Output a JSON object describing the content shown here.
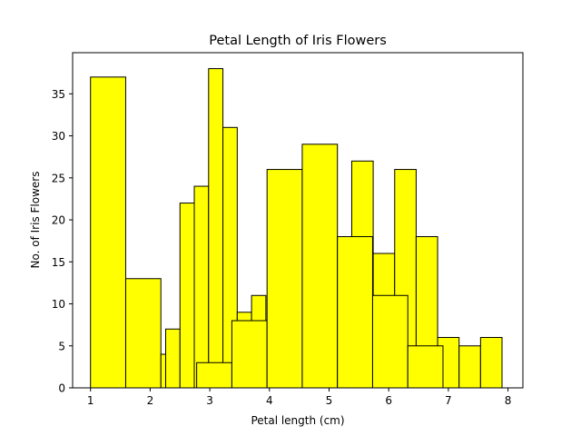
{
  "chart_data": {
    "type": "bar",
    "title": "Petal Length of Iris Flowers",
    "xlabel": "Petal length (cm)",
    "ylabel": "No. of Iris Flowers",
    "xlim": [
      0.7,
      8.25
    ],
    "ylim": [
      0,
      39.9
    ],
    "xticks": [
      "1",
      "2",
      "3",
      "4",
      "5",
      "6",
      "7",
      "8"
    ],
    "yticks": [
      "0",
      "5",
      "10",
      "15",
      "20",
      "25",
      "30",
      "35"
    ],
    "grid": false,
    "legend": false,
    "bar_color": "#ffff00",
    "edge_color": "#000000",
    "bars": [
      {
        "x0": 1.0,
        "x1": 1.59,
        "value": 37
      },
      {
        "x0": 1.59,
        "x1": 2.18,
        "value": 13
      },
      {
        "x0": 2.18,
        "x1": 2.26,
        "value": 4
      },
      {
        "x0": 2.26,
        "x1": 2.5,
        "value": 7
      },
      {
        "x0": 2.5,
        "x1": 2.74,
        "value": 22
      },
      {
        "x0": 2.74,
        "x1": 2.98,
        "value": 24
      },
      {
        "x0": 2.98,
        "x1": 3.22,
        "value": 38
      },
      {
        "x0": 3.22,
        "x1": 3.46,
        "value": 31
      },
      {
        "x0": 2.78,
        "x1": 3.37,
        "value": 3
      },
      {
        "x0": 3.46,
        "x1": 3.7,
        "value": 9
      },
      {
        "x0": 3.7,
        "x1": 3.94,
        "value": 11
      },
      {
        "x0": 3.37,
        "x1": 3.96,
        "value": 8
      },
      {
        "x0": 3.96,
        "x1": 4.55,
        "value": 26
      },
      {
        "x0": 4.55,
        "x1": 5.14,
        "value": 29
      },
      {
        "x0": 5.38,
        "x1": 5.74,
        "value": 27
      },
      {
        "x0": 5.14,
        "x1": 5.73,
        "value": 18
      },
      {
        "x0": 5.74,
        "x1": 6.1,
        "value": 16
      },
      {
        "x0": 6.1,
        "x1": 6.46,
        "value": 26
      },
      {
        "x0": 5.73,
        "x1": 6.32,
        "value": 11
      },
      {
        "x0": 6.46,
        "x1": 6.82,
        "value": 18
      },
      {
        "x0": 6.82,
        "x1": 7.18,
        "value": 6
      },
      {
        "x0": 6.32,
        "x1": 6.91,
        "value": 5
      },
      {
        "x0": 7.18,
        "x1": 7.54,
        "value": 5
      },
      {
        "x0": 7.54,
        "x1": 7.9,
        "value": 6
      }
    ]
  }
}
